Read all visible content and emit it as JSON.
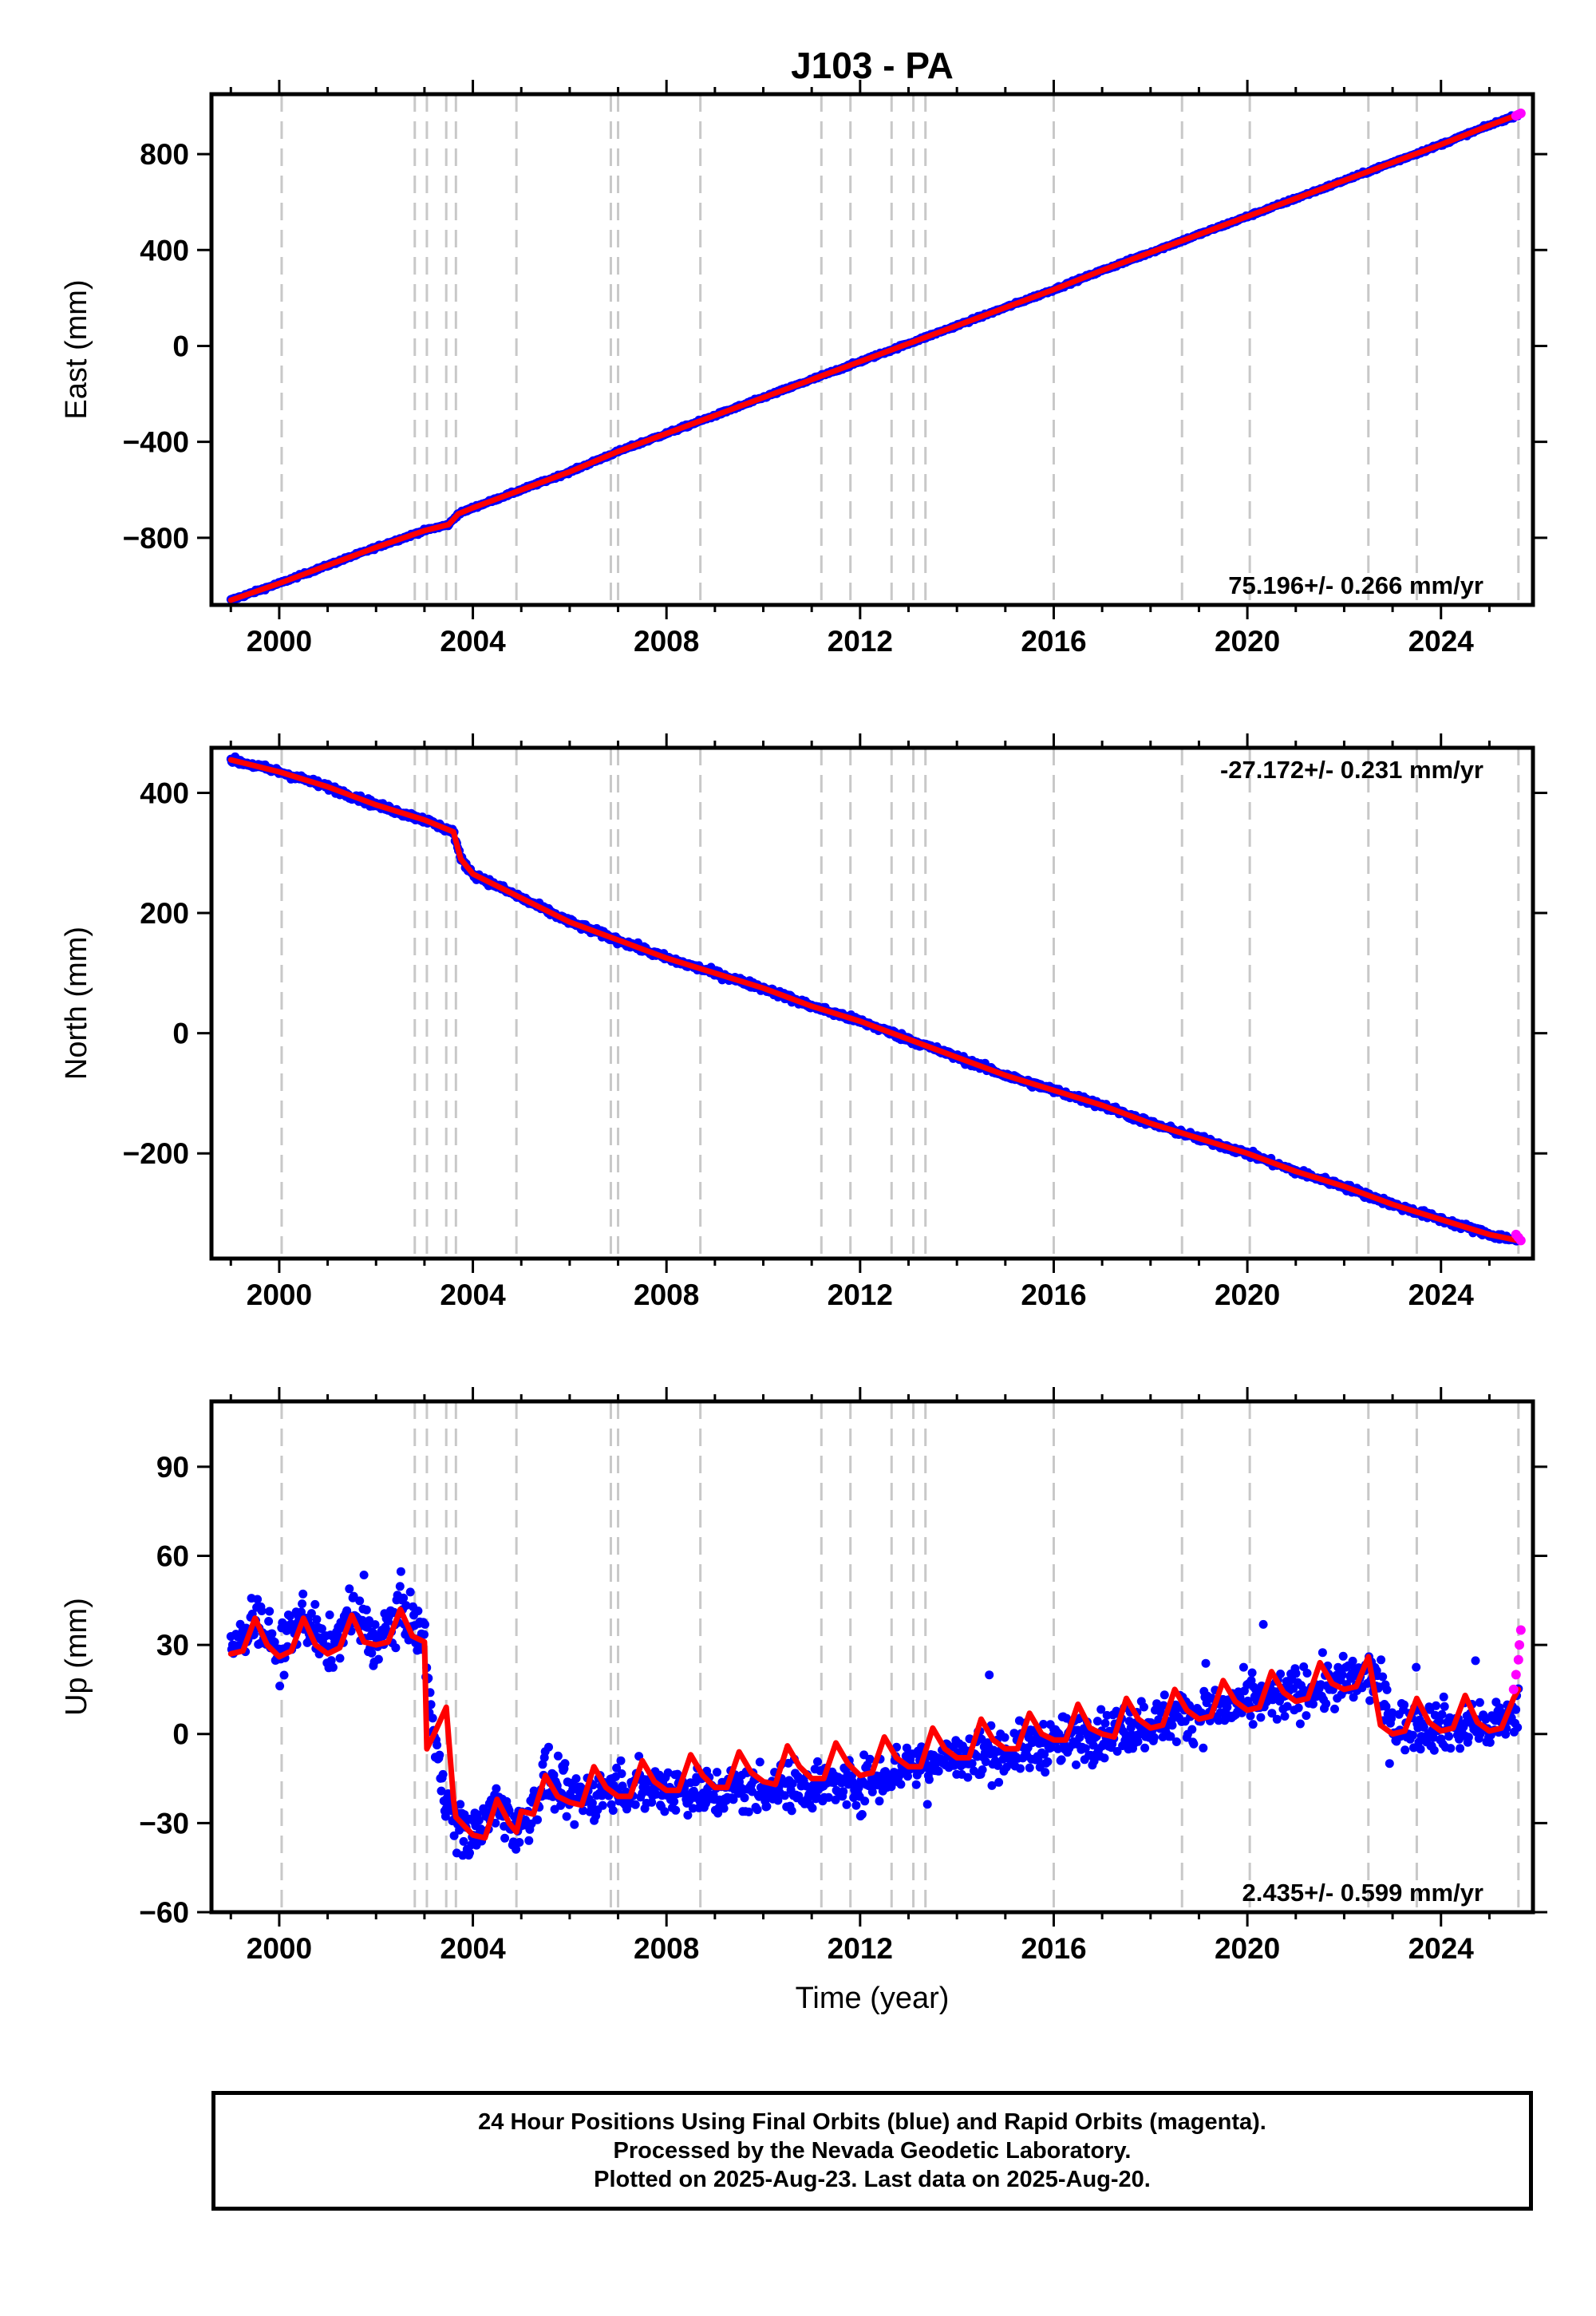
{
  "title": "J103 - PA",
  "x_axis_label": "Time (year)",
  "footer": {
    "lines": [
      "24 Hour Positions Using Final Orbits (blue) and Rapid Orbits (magenta).",
      "Processed by the Nevada Geodetic Laboratory.",
      "Plotted on 2025-Aug-23. Last data on 2025-Aug-20."
    ]
  },
  "colors": {
    "final_orbits": "#0000ff",
    "rapid_orbits": "#ff00ff",
    "model_fit": "#ff0000",
    "event_lines": "#c8c8c8"
  },
  "chart_data": [
    {
      "type": "scatter",
      "component": "east",
      "ylabel": "East (mm)",
      "rate_label": "75.196+/- 0.266 mm/yr",
      "xlim": [
        1998.6,
        2025.9
      ],
      "ylim": [
        -1080,
        1050
      ],
      "x_ticks": [
        2000,
        2004,
        2008,
        2012,
        2016,
        2020,
        2024
      ],
      "y_ticks": [
        -800,
        -400,
        0,
        400,
        800
      ],
      "event_lines": [
        2000.05,
        2002.8,
        2003.05,
        2003.45,
        2003.65,
        2004.9,
        2006.85,
        2007.0,
        2008.7,
        2011.2,
        2011.8,
        2012.65,
        2013.1,
        2013.35,
        2016.0,
        2018.65,
        2020.05,
        2022.5,
        2023.5,
        2025.6
      ],
      "series": [
        {
          "role": "final",
          "x": [
            1999.0,
            2000.0,
            2001.0,
            2002.0,
            2003.0,
            2003.5,
            2003.7,
            2004.0,
            2005.0,
            2006.0,
            2007.0,
            2008.0,
            2009.0,
            2010.0,
            2011.0,
            2012.0,
            2013.0,
            2014.0,
            2015.0,
            2016.0,
            2017.0,
            2018.0,
            2019.0,
            2020.0,
            2021.0,
            2022.0,
            2023.0,
            2024.0,
            2025.0,
            2025.6
          ],
          "y": [
            -1060,
            -990,
            -915,
            -840,
            -770,
            -745,
            -700,
            -675,
            -600,
            -525,
            -440,
            -365,
            -290,
            -215,
            -140,
            -65,
            10,
            85,
            160,
            235,
            315,
            390,
            465,
            540,
            615,
            690,
            765,
            840,
            920,
            965
          ]
        },
        {
          "role": "rapid",
          "x": [
            2025.55,
            2025.6,
            2025.65
          ],
          "y": [
            960,
            965,
            970
          ]
        }
      ]
    },
    {
      "type": "scatter",
      "component": "north",
      "ylabel": "North (mm)",
      "rate_label": "-27.172+/- 0.231 mm/yr",
      "xlim": [
        1998.6,
        2025.9
      ],
      "ylim": [
        -375,
        475
      ],
      "x_ticks": [
        2000,
        2004,
        2008,
        2012,
        2016,
        2020,
        2024
      ],
      "y_ticks": [
        -200,
        0,
        200,
        400
      ],
      "event_lines": [
        2000.05,
        2002.8,
        2003.05,
        2003.45,
        2003.65,
        2004.9,
        2006.85,
        2007.0,
        2008.7,
        2011.2,
        2011.8,
        2012.65,
        2013.1,
        2013.35,
        2016.0,
        2018.65,
        2020.05,
        2022.5,
        2023.5,
        2025.6
      ],
      "series": [
        {
          "role": "final",
          "x": [
            1999.0,
            2000.0,
            2001.0,
            2002.0,
            2003.0,
            2003.6,
            2003.75,
            2004.0,
            2005.0,
            2006.0,
            2007.0,
            2008.0,
            2009.0,
            2010.0,
            2011.0,
            2012.0,
            2013.0,
            2014.0,
            2015.0,
            2016.0,
            2017.0,
            2018.0,
            2019.0,
            2020.0,
            2021.0,
            2022.0,
            2023.0,
            2024.0,
            2025.0,
            2025.6
          ],
          "y": [
            455,
            435,
            410,
            380,
            355,
            335,
            290,
            265,
            225,
            185,
            155,
            125,
            100,
            75,
            45,
            20,
            -10,
            -40,
            -70,
            -95,
            -120,
            -150,
            -175,
            -200,
            -230,
            -255,
            -285,
            -310,
            -335,
            -345
          ]
        },
        {
          "role": "rapid",
          "x": [
            2025.55,
            2025.6,
            2025.65
          ],
          "y": [
            -335,
            -340,
            -345
          ]
        }
      ]
    },
    {
      "type": "scatter",
      "component": "up",
      "ylabel": "Up (mm)",
      "rate_label": "2.435+/- 0.599 mm/yr",
      "xlim": [
        1998.6,
        2025.9
      ],
      "ylim": [
        -60,
        112
      ],
      "x_ticks": [
        2000,
        2004,
        2008,
        2012,
        2016,
        2020,
        2024
      ],
      "y_ticks": [
        -60,
        -30,
        0,
        30,
        60,
        90
      ],
      "event_lines": [
        2000.05,
        2002.8,
        2003.05,
        2003.45,
        2003.65,
        2004.9,
        2006.85,
        2007.0,
        2008.7,
        2011.2,
        2011.8,
        2012.65,
        2013.1,
        2013.35,
        2016.0,
        2018.65,
        2020.05,
        2022.5,
        2023.5,
        2025.6
      ],
      "series": [
        {
          "role": "final",
          "x": [
            1999.0,
            1999.5,
            2000.0,
            2000.5,
            2001.0,
            2001.5,
            2002.0,
            2002.5,
            2003.0,
            2003.2,
            2003.6,
            2004.0,
            2004.5,
            2005.0,
            2005.5,
            2006.0,
            2007.0,
            2008.0,
            2009.0,
            2010.0,
            2011.0,
            2012.0,
            2013.0,
            2014.0,
            2015.0,
            2016.0,
            2017.0,
            2018.0,
            2019.0,
            2020.0,
            2021.0,
            2022.0,
            2022.6,
            2023.0,
            2024.0,
            2025.0,
            2025.6
          ],
          "y": [
            27,
            40,
            27,
            40,
            28,
            41,
            30,
            43,
            32,
            -3,
            -30,
            -34,
            -24,
            -33,
            -15,
            -22,
            -18,
            -18,
            -20,
            -18,
            -17,
            -17,
            -10,
            -8,
            -6,
            -3,
            0,
            4,
            7,
            10,
            14,
            17,
            20,
            3,
            3,
            2,
            8
          ]
        },
        {
          "role": "rapid",
          "x": [
            2025.5,
            2025.55,
            2025.6,
            2025.62,
            2025.65
          ],
          "y": [
            15,
            20,
            25,
            30,
            35
          ]
        },
        {
          "role": "fit",
          "x": [
            1999.0,
            1999.25,
            1999.5,
            1999.75,
            2000.0,
            2000.25,
            2000.5,
            2000.75,
            2001.0,
            2001.25,
            2001.5,
            2001.75,
            2002.0,
            2002.25,
            2002.5,
            2002.75,
            2003.0,
            2003.05,
            2003.2,
            2003.45,
            2003.6,
            2003.65,
            2004.0,
            2004.25,
            2004.5,
            2004.75,
            2004.9,
            2005.0,
            2005.25,
            2005.5,
            2005.75,
            2006.0,
            2006.25,
            2006.5,
            2006.75,
            2007.0,
            2007.25,
            2007.5,
            2007.75,
            2008.0,
            2008.25,
            2008.5,
            2008.75,
            2009.0,
            2009.25,
            2009.5,
            2009.75,
            2010.0,
            2010.25,
            2010.5,
            2010.75,
            2011.0,
            2011.25,
            2011.5,
            2011.75,
            2012.0,
            2012.25,
            2012.5,
            2012.75,
            2013.0,
            2013.25,
            2013.5,
            2013.75,
            2014.0,
            2014.25,
            2014.5,
            2014.75,
            2015.0,
            2015.25,
            2015.5,
            2015.75,
            2016.0,
            2016.25,
            2016.5,
            2016.75,
            2017.0,
            2017.25,
            2017.5,
            2017.75,
            2018.0,
            2018.25,
            2018.5,
            2018.75,
            2019.0,
            2019.25,
            2019.5,
            2019.75,
            2020.0,
            2020.25,
            2020.5,
            2020.75,
            2021.0,
            2021.25,
            2021.5,
            2021.75,
            2022.0,
            2022.25,
            2022.5,
            2022.75,
            2023.0,
            2023.25,
            2023.5,
            2023.75,
            2024.0,
            2024.25,
            2024.5,
            2024.75,
            2025.0,
            2025.25,
            2025.5,
            2025.6
          ],
          "y": [
            27,
            28,
            39,
            30,
            26,
            28,
            39,
            30,
            27,
            29,
            40,
            31,
            30,
            31,
            42,
            33,
            31,
            -5,
            0,
            9,
            -22,
            -28,
            -34,
            -35,
            -22,
            -30,
            -33,
            -26,
            -27,
            -14,
            -21,
            -23,
            -24,
            -11,
            -18,
            -21,
            -21,
            -9,
            -16,
            -19,
            -19,
            -7,
            -14,
            -18,
            -18,
            -6,
            -13,
            -16,
            -17,
            -4,
            -11,
            -15,
            -15,
            -3,
            -10,
            -14,
            -13,
            -1,
            -8,
            -11,
            -11,
            2,
            -5,
            -8,
            -8,
            5,
            -2,
            -5,
            -5,
            7,
            0,
            -2,
            -2,
            10,
            2,
            0,
            -1,
            12,
            5,
            2,
            3,
            15,
            8,
            5,
            6,
            18,
            11,
            8,
            9,
            21,
            14,
            11,
            12,
            24,
            17,
            15,
            16,
            26,
            3,
            0,
            1,
            12,
            4,
            1,
            2,
            13,
            4,
            1,
            2,
            12,
            15
          ]
        }
      ]
    }
  ]
}
